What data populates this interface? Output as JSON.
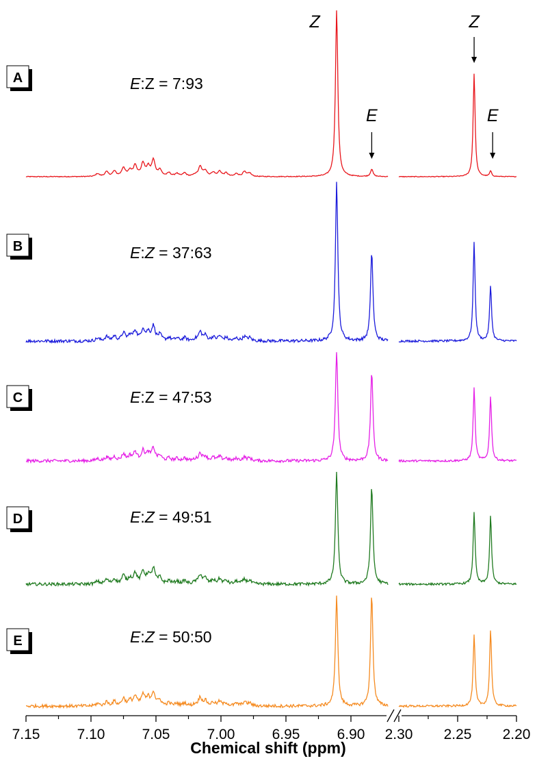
{
  "chart_data": {
    "type": "line",
    "xlabel": "Chemical shift (ppm)",
    "x_axis_segments": [
      {
        "range": [
          7.15,
          6.87
        ],
        "ticks": [
          "7.15",
          "7.10",
          "7.05",
          "7.00",
          "6.95",
          "6.90"
        ]
      },
      {
        "range": [
          2.3,
          2.2
        ],
        "ticks": [
          "2.30",
          "2.25",
          "2.20"
        ]
      }
    ],
    "axis_break": true,
    "peak_labels": {
      "z": "Z",
      "e": "E"
    },
    "z_peaks_ppm": [
      6.911,
      2.236
    ],
    "e_peaks_ppm": [
      6.884,
      2.222
    ],
    "spectra": [
      {
        "name": "A",
        "ratio_label": "E:Z = 7:93",
        "ratio_prefix": "E",
        "ratio_sep": ":",
        "ratio_z": "Z",
        "ratio_z_italic": false,
        "ratio_suffix": " = 7:93",
        "color": "#e8151b",
        "e_percent": 7,
        "z_percent": 93
      },
      {
        "name": "B",
        "ratio_label": "E:Z = 37:63",
        "ratio_prefix": "E",
        "ratio_sep": ":",
        "ratio_z": "Z",
        "ratio_z_italic": true,
        "ratio_suffix": " = 37:63",
        "color": "#1a1adb",
        "e_percent": 37,
        "z_percent": 63
      },
      {
        "name": "C",
        "ratio_label": "E:Z = 47:53",
        "ratio_prefix": "E",
        "ratio_sep": ":",
        "ratio_z": "Z",
        "ratio_z_italic": false,
        "ratio_suffix": " = 47:53",
        "color": "#e51fe6",
        "e_percent": 47,
        "z_percent": 53
      },
      {
        "name": "D",
        "ratio_label": "E:Z = 49:51",
        "ratio_prefix": "E",
        "ratio_sep": ":",
        "ratio_z": "Z",
        "ratio_z_italic": true,
        "ratio_suffix": " = 49:51",
        "color": "#1f7a1f",
        "e_percent": 49,
        "z_percent": 51
      },
      {
        "name": "E",
        "ratio_label": "E:Z = 50:50",
        "ratio_prefix": "E",
        "ratio_sep": ":",
        "ratio_z": "Z",
        "ratio_z_italic": true,
        "ratio_suffix": " = 50:50",
        "color": "#f58a1f",
        "e_percent": 50,
        "z_percent": 50
      }
    ]
  }
}
